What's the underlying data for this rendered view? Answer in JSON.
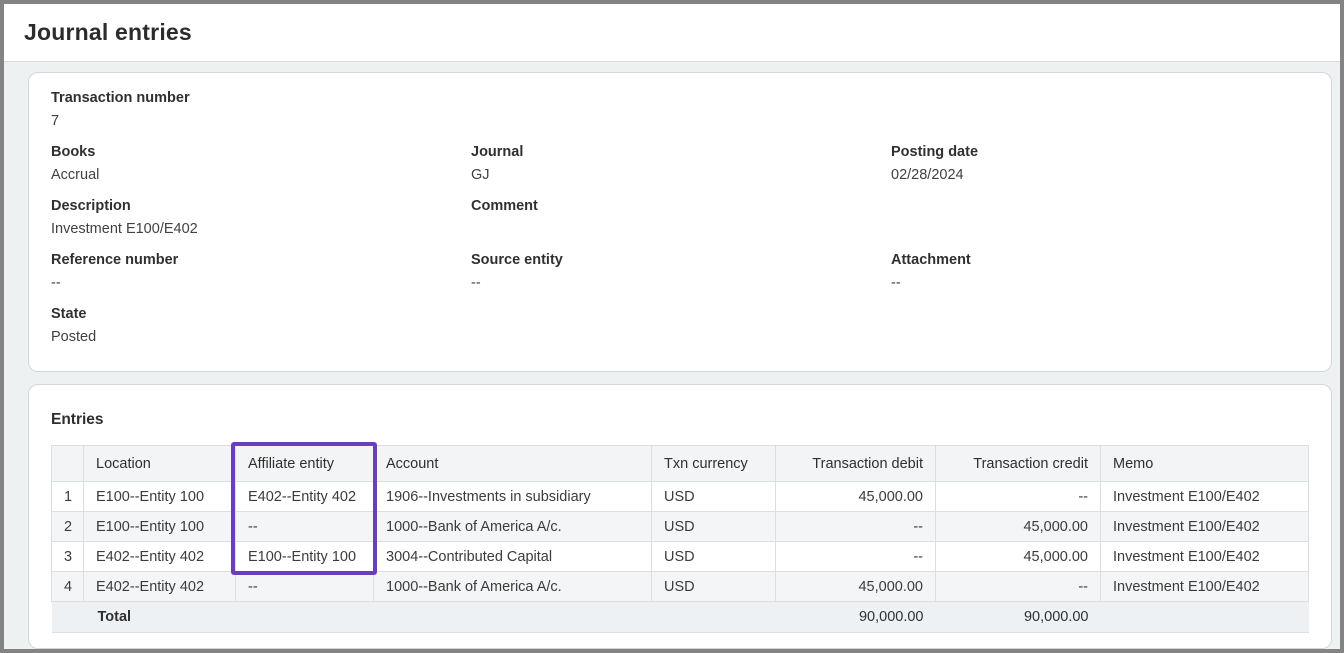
{
  "page": {
    "title": "Journal entries"
  },
  "details": {
    "rows": [
      [
        {
          "label": "Transaction number",
          "value": "7"
        }
      ],
      [
        {
          "label": "Books",
          "value": "Accrual"
        },
        {
          "label": "Journal",
          "value": "GJ"
        },
        {
          "label": "Posting date",
          "value": "02/28/2024"
        }
      ],
      [
        {
          "label": "Description",
          "value": "Investment E100/E402"
        },
        {
          "label": "Comment",
          "value": ""
        }
      ],
      [
        {
          "label": "Reference number",
          "value": "--"
        },
        {
          "label": "Source entity",
          "value": "--"
        },
        {
          "label": "Attachment",
          "value": "--"
        }
      ],
      [
        {
          "label": "State",
          "value": "Posted"
        }
      ]
    ]
  },
  "entries": {
    "title": "Entries",
    "columns": [
      "",
      "Location",
      "Affiliate entity",
      "Account",
      "Txn currency",
      "Transaction debit",
      "Transaction credit",
      "Memo"
    ],
    "rows": [
      [
        "1",
        "E100--Entity 100",
        "E402--Entity 402",
        "1906--Investments in subsidiary",
        "USD",
        "45,000.00",
        "--",
        "Investment E100/E402"
      ],
      [
        "2",
        "E100--Entity 100",
        "--",
        "1000--Bank of America A/c.",
        "USD",
        "--",
        "45,000.00",
        "Investment E100/E402"
      ],
      [
        "3",
        "E402--Entity 402",
        "E100--Entity 100",
        "3004--Contributed Capital",
        "USD",
        "--",
        "45,000.00",
        "Investment E100/E402"
      ],
      [
        "4",
        "E402--Entity 402",
        "--",
        "1000--Bank of America A/c.",
        "USD",
        "45,000.00",
        "--",
        "Investment E100/E402"
      ]
    ],
    "total": {
      "label": "Total",
      "debit": "90,000.00",
      "credit": "90,000.00"
    }
  },
  "colors": {
    "highlight_border": "#6b3fbb"
  }
}
